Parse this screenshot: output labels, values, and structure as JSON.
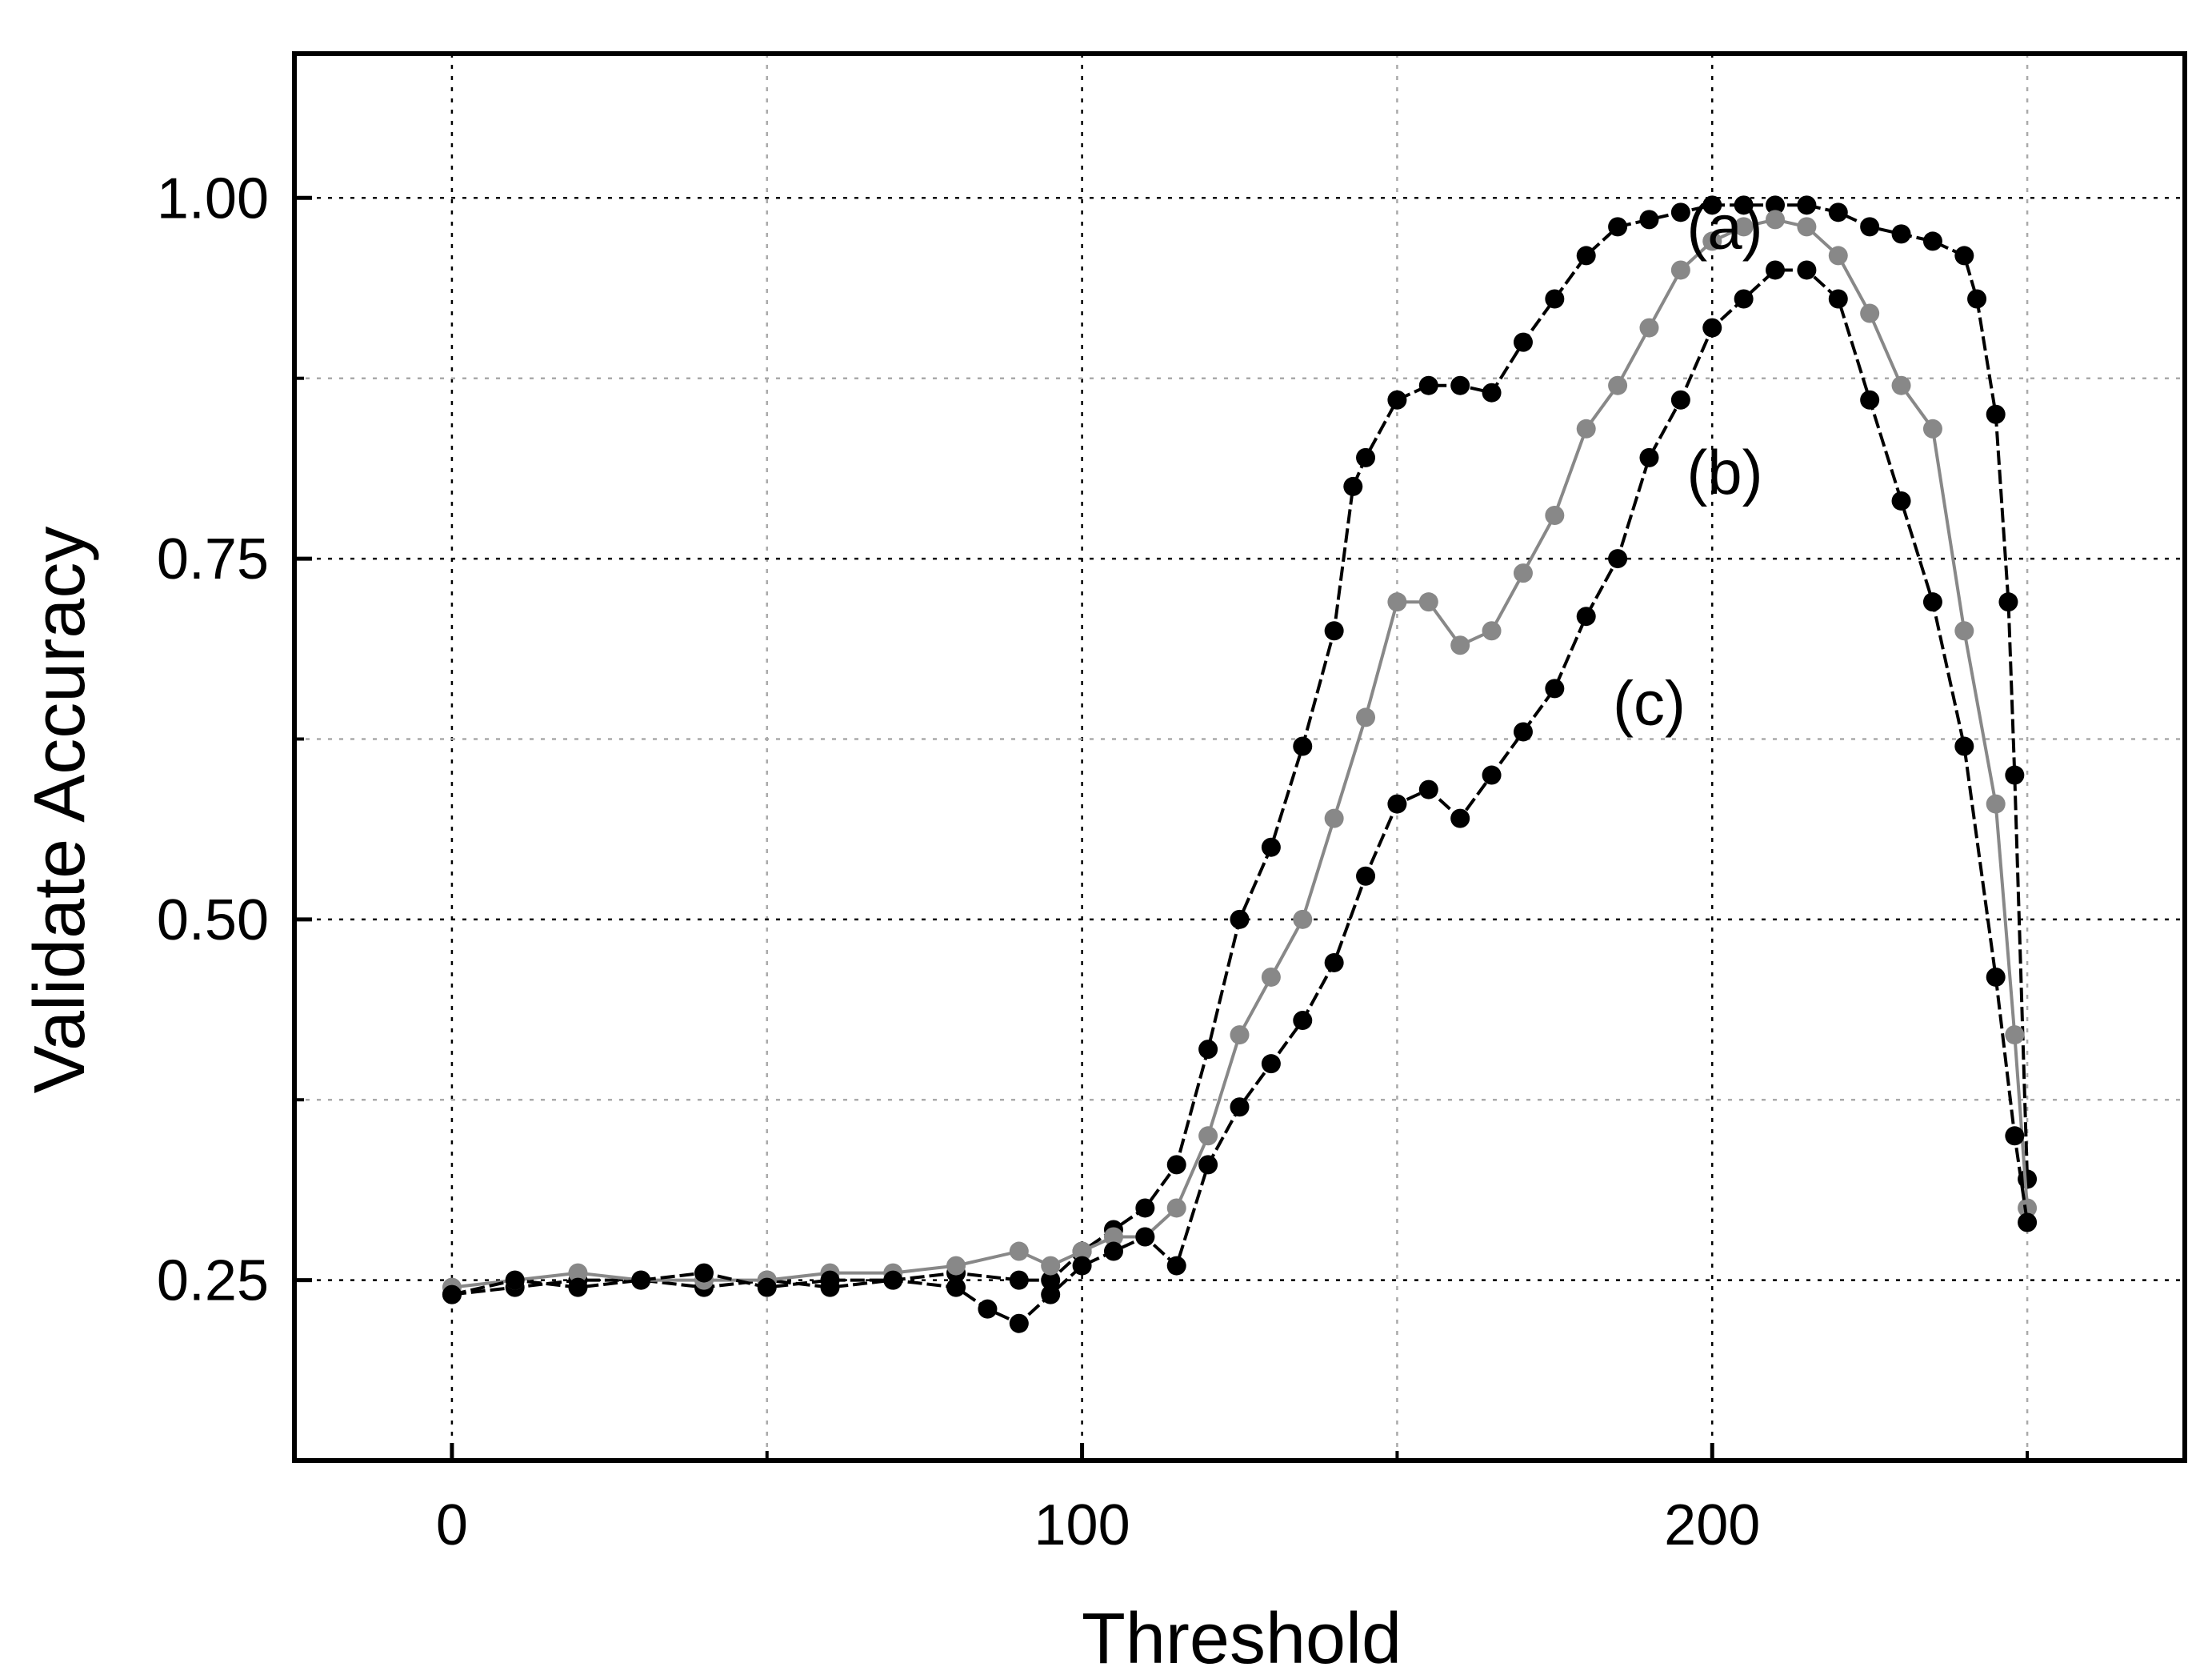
{
  "chart_data": {
    "type": "line",
    "xlabel": "Threshold",
    "ylabel": "Validate Accuracy",
    "xlim": [
      -25,
      275
    ],
    "ylim": [
      0.125,
      1.1
    ],
    "xticks": [
      0,
      100,
      200
    ],
    "yticks": [
      0.25,
      0.5,
      0.75,
      1.0
    ],
    "ytick_labels": [
      "0.25",
      "0.50",
      "0.75",
      "1.00"
    ],
    "xtick_labels": [
      "0",
      "100",
      "200"
    ],
    "grid": true,
    "annotations": [
      {
        "text": "(a)",
        "x": 202,
        "y": 0.965
      },
      {
        "text": "(b)",
        "x": 202,
        "y": 0.795
      },
      {
        "text": "(c)",
        "x": 190,
        "y": 0.635
      }
    ],
    "series": [
      {
        "label": "(a)",
        "color": "#000000",
        "x": [
          0,
          10,
          20,
          30,
          40,
          50,
          60,
          70,
          80,
          90,
          95,
          100,
          105,
          110,
          115,
          120,
          125,
          130,
          135,
          140,
          143,
          145,
          150,
          155,
          160,
          165,
          170,
          175,
          180,
          185,
          190,
          195,
          200,
          205,
          210,
          215,
          220,
          225,
          230,
          235,
          240,
          242,
          245,
          247,
          248,
          250
        ],
        "y": [
          0.24,
          0.245,
          0.25,
          0.25,
          0.245,
          0.25,
          0.245,
          0.25,
          0.255,
          0.25,
          0.25,
          0.27,
          0.285,
          0.3,
          0.33,
          0.41,
          0.5,
          0.55,
          0.62,
          0.7,
          0.8,
          0.82,
          0.86,
          0.87,
          0.87,
          0.865,
          0.9,
          0.93,
          0.96,
          0.98,
          0.985,
          0.99,
          0.995,
          0.995,
          0.995,
          0.995,
          0.99,
          0.98,
          0.975,
          0.97,
          0.96,
          0.93,
          0.85,
          0.72,
          0.6,
          0.32
        ]
      },
      {
        "label": "(b)",
        "color": "#888888",
        "x": [
          0,
          10,
          20,
          30,
          40,
          50,
          60,
          70,
          80,
          90,
          95,
          100,
          105,
          110,
          115,
          120,
          125,
          130,
          135,
          140,
          145,
          150,
          155,
          160,
          165,
          170,
          175,
          180,
          185,
          190,
          195,
          200,
          205,
          210,
          215,
          220,
          225,
          230,
          235,
          240,
          245,
          248,
          250
        ],
        "y": [
          0.245,
          0.25,
          0.255,
          0.25,
          0.25,
          0.25,
          0.255,
          0.255,
          0.26,
          0.27,
          0.26,
          0.27,
          0.28,
          0.28,
          0.3,
          0.35,
          0.42,
          0.46,
          0.5,
          0.57,
          0.64,
          0.72,
          0.72,
          0.69,
          0.7,
          0.74,
          0.78,
          0.84,
          0.87,
          0.91,
          0.95,
          0.97,
          0.98,
          0.985,
          0.98,
          0.96,
          0.92,
          0.87,
          0.84,
          0.7,
          0.58,
          0.42,
          0.3
        ]
      },
      {
        "label": "(c)",
        "color": "#000000",
        "x": [
          0,
          10,
          20,
          30,
          40,
          50,
          60,
          70,
          80,
          85,
          90,
          95,
          100,
          105,
          110,
          115,
          120,
          125,
          130,
          135,
          140,
          145,
          150,
          155,
          160,
          165,
          170,
          175,
          180,
          185,
          190,
          195,
          200,
          205,
          210,
          215,
          220,
          225,
          230,
          235,
          240,
          245,
          248,
          250
        ],
        "y": [
          0.24,
          0.25,
          0.245,
          0.25,
          0.255,
          0.245,
          0.25,
          0.25,
          0.245,
          0.23,
          0.22,
          0.24,
          0.26,
          0.27,
          0.28,
          0.26,
          0.33,
          0.37,
          0.4,
          0.43,
          0.47,
          0.53,
          0.58,
          0.59,
          0.57,
          0.6,
          0.63,
          0.66,
          0.71,
          0.75,
          0.82,
          0.86,
          0.91,
          0.93,
          0.95,
          0.95,
          0.93,
          0.86,
          0.79,
          0.72,
          0.62,
          0.46,
          0.35,
          0.29
        ]
      }
    ]
  }
}
